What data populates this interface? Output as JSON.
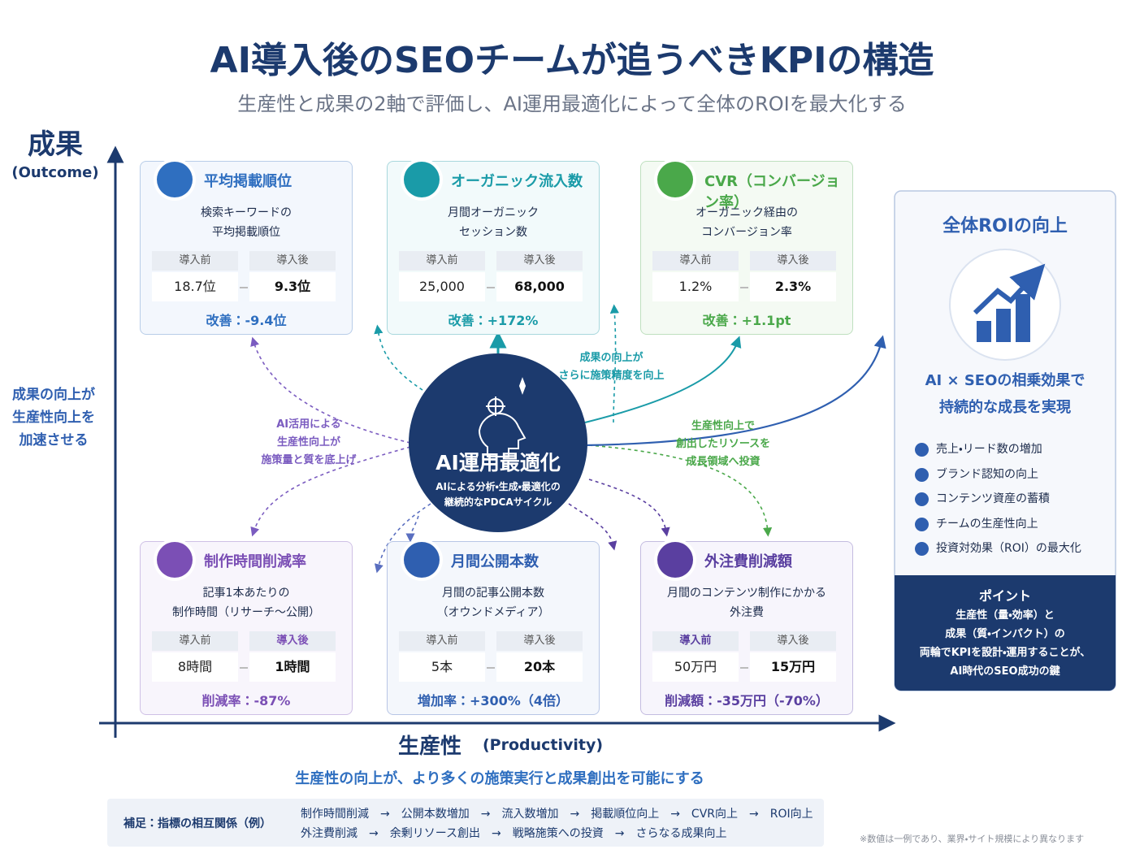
{
  "title": "AI導入後のSEOチームが追うべきKPIの構造",
  "subtitle": "生産性と成果の2軸で評価し、AI運用最適化によって全体のROIを最大化する",
  "y_axis": {
    "label": "成果",
    "sub": "(Outcome)",
    "note": [
      "成果の向上が",
      "生産性向上を",
      "加速させる"
    ]
  },
  "x_axis": {
    "label": "生産性",
    "sub": "(Productivity)",
    "note": "生産性の向上が、より多くの施策実行と成果創出を可能にする"
  },
  "cards": [
    {
      "title": "平均掲載順位",
      "desc": [
        "検索キーワードの",
        "平均掲載順位"
      ],
      "before_label": "導入前",
      "after_label": "導入後",
      "before": "18.7位",
      "after": "9.3位",
      "result": "改善：-9.4位"
    },
    {
      "title": "オーガニック流入数",
      "desc": [
        "月間オーガニック",
        "セッション数"
      ],
      "before_label": "導入前",
      "after_label": "導入後",
      "before": "25,000",
      "after": "68,000",
      "result": "改善：+172%"
    },
    {
      "title": "CVR（コンバージョン率）",
      "desc": [
        "オーガニック経由の",
        "コンバージョン率"
      ],
      "before_label": "導入前",
      "after_label": "導入後",
      "before": "1.2%",
      "after": "2.3%",
      "result": "改善：+1.1pt"
    },
    {
      "title": "制作時間削減率",
      "desc": [
        "記事1本あたりの",
        "制作時間（リサーチ〜公開）"
      ],
      "before_label": "導入前",
      "after_label": "導入後",
      "before": "8時間",
      "after": "1時間",
      "result": "削減率：-87%"
    },
    {
      "title": "月間公開本数",
      "desc": [
        "月間の記事公開本数",
        "（オウンドメディア）"
      ],
      "before_label": "導入前",
      "after_label": "導入後",
      "before": "5本",
      "after": "20本",
      "result": "増加率：+300%（4倍）"
    },
    {
      "title": "外注費削減額",
      "desc": [
        "月間のコンテンツ制作にかかる",
        "外注費"
      ],
      "before_label": "導入前",
      "after_label": "導入後",
      "before": "50万円",
      "after": "15万円",
      "result": "削減額：-35万円（-70%）"
    }
  ],
  "center": {
    "title": "AI運用最適化",
    "lines": [
      "AIによる分析・生成・最適化の",
      "継続的なPDCAサイクル"
    ]
  },
  "flows": {
    "left": [
      "AI活用による",
      "生産性向上が",
      "施策量と質を底上げ"
    ],
    "top": [
      "成果の向上が",
      "さらに施策精度を向上"
    ],
    "right": [
      "生産性向上で",
      "創出したリソースを",
      "成長領域へ投資"
    ]
  },
  "roi": {
    "title": "全体ROIの向上",
    "lines": [
      "AI × SEOの相乗効果で",
      "持続的な成長を実現"
    ],
    "items": [
      "売上・リード数の増加",
      "ブランド認知の向上",
      "コンテンツ資産の蓄積",
      "チームの生産性向上",
      "投資対効果（ROI）の最大化"
    ],
    "point_title": "ポイント",
    "point_lines": [
      "生産性（量・効率）と",
      "成果（質・インパクト）の",
      "両輪でKPIを設計・運用することが、",
      "AI時代のSEO成功の鍵"
    ]
  },
  "footer": {
    "label": "補足：指標の相互関係（例）",
    "rows": [
      "制作時間削減　→　公開本数増加　→　流入数増加　→　掲載順位向上　→　CVR向上　→　ROI向上",
      "外注費削減　→　余剰リソース創出　→　戦略施策への投資　→　さらなる成果向上"
    ]
  },
  "note": "※数値は一例であり、業界・サイト規模により異なります"
}
